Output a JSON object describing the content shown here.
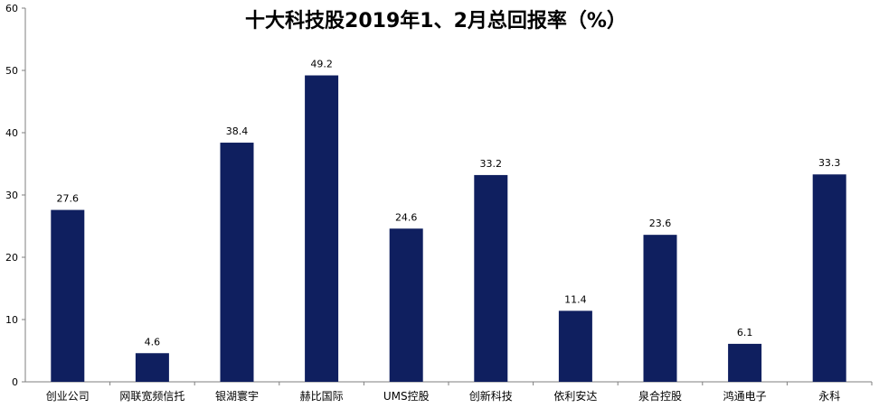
{
  "chart_data": {
    "type": "bar",
    "title": "十大科技股2019年1、2月总回报率（%）",
    "categories": [
      "创业公司",
      "网联宽频信托",
      "银湖寰宇",
      "赫比国际",
      "UMS控股",
      "创新科技",
      "依利安达",
      "泉合控股",
      "鸿通电子",
      "永科"
    ],
    "values": [
      27.6,
      4.6,
      38.4,
      49.2,
      24.6,
      33.2,
      11.4,
      23.6,
      6.1,
      33.3
    ],
    "data_labels": [
      "27.6",
      "4.6",
      "38.4",
      "49.2",
      "24.6",
      "33.2",
      "11.4",
      "23.6",
      "6.1",
      "33.3"
    ],
    "yticks": [
      "0",
      "10",
      "20",
      "30",
      "40",
      "50",
      "60"
    ],
    "ylim": [
      0,
      60
    ],
    "xlabel": "",
    "ylabel": "",
    "grid": false,
    "legend": "none",
    "bar_color": "#0f1f5f"
  }
}
